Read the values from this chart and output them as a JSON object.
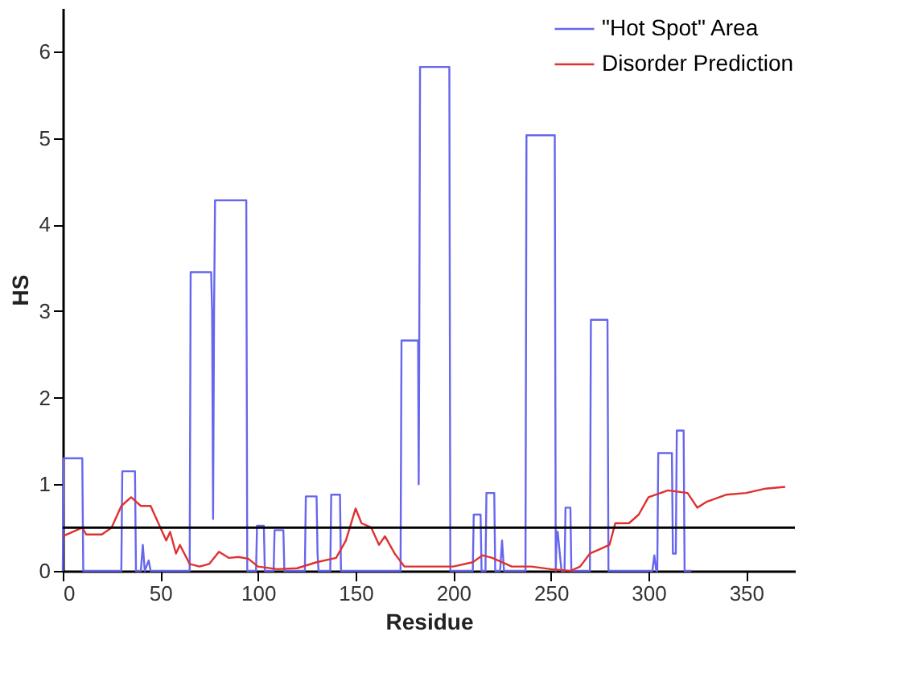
{
  "chart_data": {
    "type": "line",
    "xlabel": "Residue",
    "ylabel": "HS",
    "xlim": [
      0,
      375
    ],
    "xticks": [
      0,
      50,
      100,
      150,
      200,
      250,
      300,
      350
    ],
    "ylim": [
      0,
      6.5
    ],
    "yticks": [
      0,
      1,
      2,
      3,
      4,
      5,
      6
    ],
    "grid": false,
    "legend": "top right",
    "marker": "none",
    "line_style": "solid",
    "ref_lines": [
      {
        "axis": "y",
        "value": 0.5,
        "color": "#000000"
      }
    ],
    "series": [
      {
        "name": "\"Hot Spot\" Area",
        "color": "#6666ee",
        "x": [
          0,
          0.5,
          10,
          10.5,
          30,
          30.5,
          37,
          37.5,
          40,
          41,
          42,
          44,
          45,
          46,
          65,
          65.5,
          76,
          76.5,
          77,
          77.5,
          78,
          78.5,
          94,
          94.5,
          99,
          99.5,
          103,
          103.5,
          108,
          108.5,
          113,
          113.5,
          124,
          124.5,
          130,
          130.5,
          131,
          131.5,
          137,
          137.5,
          142,
          142.5,
          173,
          173.5,
          182,
          182.3,
          182.6,
          183,
          198,
          198.5,
          210,
          210.5,
          214,
          214.5,
          216.5,
          217,
          221,
          221.5,
          224,
          225,
          226,
          237,
          237.5,
          252,
          252.5,
          253,
          253.5,
          255,
          255.5,
          257,
          257.5,
          260,
          260.5,
          270,
          270.5,
          279,
          279.5,
          302,
          303,
          304,
          304.5,
          305,
          312,
          312.5,
          313,
          314,
          314.5,
          318,
          318.5,
          322
        ],
        "values": [
          0,
          1.3,
          1.3,
          0,
          0,
          1.15,
          1.15,
          0,
          0,
          0.3,
          0,
          0.12,
          0,
          0,
          0,
          3.45,
          3.45,
          3.0,
          0.6,
          3.0,
          4.28,
          4.28,
          4.28,
          0,
          0,
          0.52,
          0.52,
          0,
          0,
          0.47,
          0.47,
          0,
          0,
          0.86,
          0.86,
          0.2,
          0,
          0,
          0,
          0.88,
          0.88,
          0,
          0,
          2.66,
          2.66,
          1.0,
          2.66,
          5.82,
          5.82,
          0,
          0,
          0.65,
          0.65,
          0,
          0,
          0.9,
          0.9,
          0,
          0,
          0.35,
          0,
          0,
          5.03,
          5.03,
          0,
          0.45,
          0.45,
          0.1,
          0,
          0,
          0.73,
          0.73,
          0,
          0,
          2.9,
          2.9,
          0,
          0,
          0.18,
          0,
          0,
          1.36,
          1.36,
          0.2,
          0.2,
          0.2,
          1.62,
          1.62,
          0,
          0
        ]
      },
      {
        "name": "Disorder Prediction",
        "color": "#e03030",
        "x": [
          0,
          5,
          10,
          12,
          20,
          25,
          30,
          35,
          40,
          45,
          50,
          53,
          55,
          58,
          60,
          65,
          70,
          75,
          80,
          85,
          90,
          95,
          100,
          110,
          120,
          130,
          140,
          145,
          150,
          153,
          158,
          162,
          165,
          170,
          175,
          185,
          200,
          210,
          215,
          220,
          230,
          240,
          250,
          260,
          265,
          270,
          275,
          280,
          283,
          290,
          295,
          300,
          310,
          320,
          325,
          330,
          340,
          350,
          360,
          370
        ],
        "values": [
          0.4,
          0.45,
          0.5,
          0.42,
          0.42,
          0.5,
          0.75,
          0.85,
          0.75,
          0.75,
          0.5,
          0.35,
          0.45,
          0.2,
          0.3,
          0.08,
          0.05,
          0.08,
          0.22,
          0.15,
          0.16,
          0.14,
          0.05,
          0.02,
          0.03,
          0.1,
          0.15,
          0.35,
          0.72,
          0.55,
          0.5,
          0.3,
          0.4,
          0.2,
          0.05,
          0.05,
          0.05,
          0.1,
          0.18,
          0.15,
          0.05,
          0.05,
          0.02,
          0.0,
          0.05,
          0.2,
          0.25,
          0.3,
          0.55,
          0.55,
          0.65,
          0.85,
          0.93,
          0.9,
          0.73,
          0.8,
          0.88,
          0.9,
          0.95,
          0.97
        ]
      }
    ]
  }
}
